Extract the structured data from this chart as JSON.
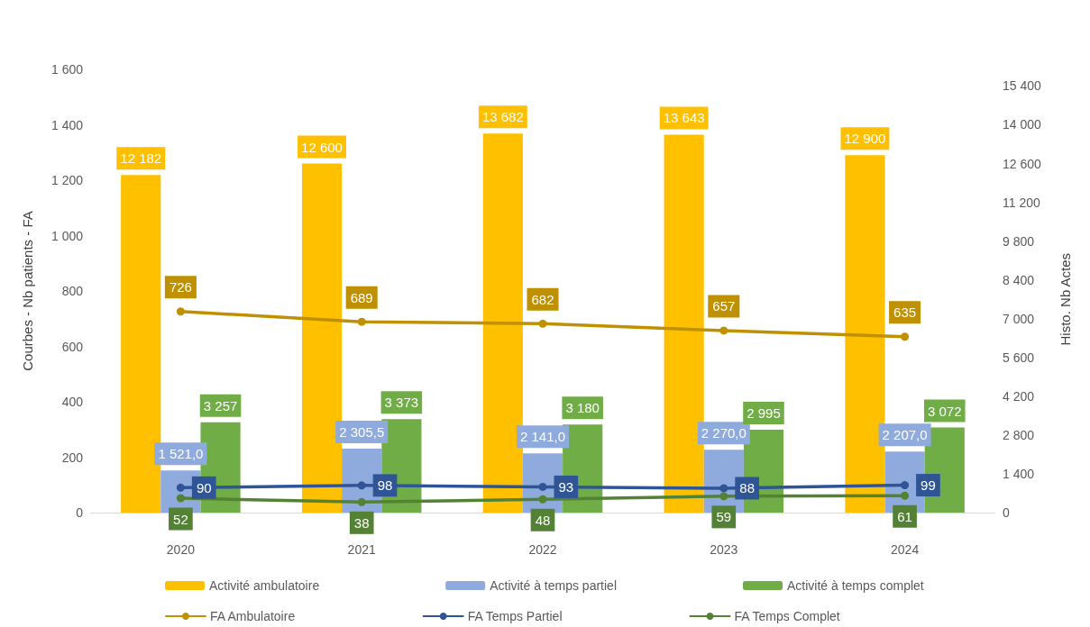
{
  "chart_data": {
    "type": "bar",
    "categories": [
      "2020",
      "2021",
      "2022",
      "2023",
      "2024"
    ],
    "ylabel": "Courbes - Nb patients - FA",
    "y2label": "Histo. Nb Actes",
    "ylim": [
      0,
      1600
    ],
    "yticks": [
      0,
      200,
      400,
      600,
      800,
      {
        "value": 1000,
        "label": "1 000"
      },
      {
        "value": 1200,
        "label": "1 200"
      },
      {
        "value": 1400,
        "label": "1 400"
      },
      {
        "value": 1600,
        "label": "1 600"
      }
    ],
    "y2lim": [
      0,
      15400
    ],
    "y2ticks": [
      0,
      {
        "value": 1400,
        "label": "1 400"
      },
      {
        "value": 2800,
        "label": "2 800"
      },
      {
        "value": 4200,
        "label": "4 200"
      },
      {
        "value": 5600,
        "label": "5 600"
      },
      {
        "value": 7000,
        "label": "7 000"
      },
      {
        "value": 8400,
        "label": "8 400"
      },
      {
        "value": 9800,
        "label": "9 800"
      },
      {
        "value": 11200,
        "label": "11 200"
      },
      {
        "value": 12600,
        "label": "12 600"
      },
      {
        "value": 14000,
        "label": "14 000"
      },
      {
        "value": 15400,
        "label": "15 400"
      }
    ],
    "grid": false,
    "legend": "bottom",
    "marker": "circle",
    "series": [
      {
        "name": "Activité ambulatoire",
        "axis": "y2",
        "color": "#ffc000",
        "values": [
          12182,
          12600,
          13682,
          13643,
          12900
        ],
        "value_labels": [
          "12 182",
          "12 600",
          "13 682",
          "13 643",
          "12 900"
        ]
      },
      {
        "name": "Activité à temps partiel",
        "axis": "y2",
        "color": "#8faadc",
        "values": [
          1521.0,
          2305.5,
          2141.0,
          2270.0,
          2207.0
        ],
        "value_labels": [
          "1 521,0",
          "2 305,5",
          "2 141,0",
          "2 270,0",
          "2 207,0"
        ]
      },
      {
        "name": "Activité à temps complet",
        "axis": "y2",
        "color": "#70ad47",
        "values": [
          3257,
          3373,
          3180,
          2995,
          3072
        ],
        "value_labels": [
          "3 257",
          "3 373",
          "3 180",
          "2 995",
          "3 072"
        ]
      },
      {
        "name": "FA Ambulatoire",
        "type": "line",
        "color": "#bf9000",
        "values": [
          726,
          689,
          682,
          657,
          635
        ],
        "value_labels": [
          "726",
          "689",
          "682",
          "657",
          "635"
        ]
      },
      {
        "name": "FA Temps Partiel",
        "type": "line",
        "color": "#2f5597",
        "values": [
          90,
          98,
          93,
          88,
          99
        ],
        "value_labels": [
          "90",
          "98",
          "93",
          "88",
          "99"
        ]
      },
      {
        "name": "FA Temps Complet",
        "type": "line",
        "color": "#548235",
        "values": [
          52,
          38,
          48,
          59,
          61
        ],
        "value_labels": [
          "52",
          "38",
          "48",
          "59",
          "61"
        ]
      }
    ]
  }
}
